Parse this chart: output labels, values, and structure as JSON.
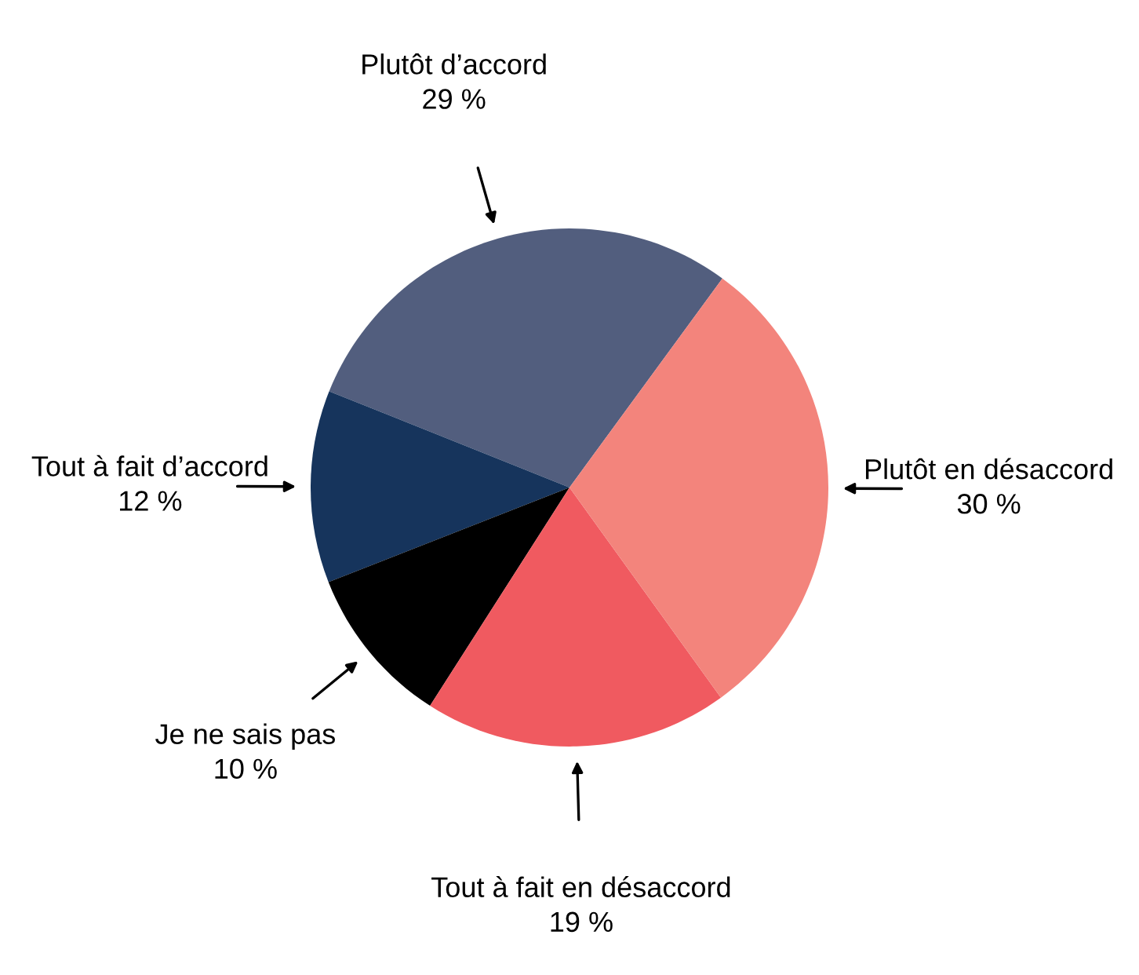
{
  "chart_data": {
    "type": "pie",
    "categories": [
      "Plutôt d’accord",
      "Tout à fait d’accord",
      "Je ne sais pas",
      "Tout à fait en désaccord",
      "Plutôt en désaccord"
    ],
    "values": [
      29,
      12,
      10,
      19,
      30
    ],
    "value_labels": [
      "29 %",
      "12 %",
      "10 %",
      "19 %",
      "30 %"
    ],
    "colors": [
      "#525e7e",
      "#16345c",
      "#000000",
      "#f05a60",
      "#f3847c"
    ]
  }
}
